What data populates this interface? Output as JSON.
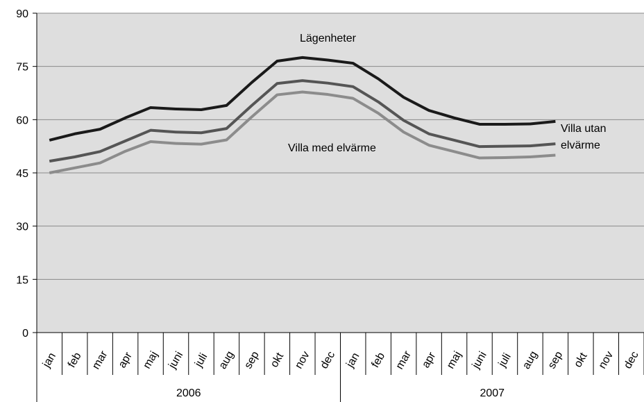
{
  "chart_data": {
    "type": "line",
    "categories": [
      "jan",
      "feb",
      "mar",
      "apr",
      "maj",
      "juni",
      "juli",
      "aug",
      "sep",
      "okt",
      "nov",
      "dec",
      "jan",
      "feb",
      "mar",
      "apr",
      "maj",
      "juni",
      "juli",
      "aug",
      "sep",
      "okt",
      "nov",
      "dec"
    ],
    "x_groups": [
      {
        "label": "2006",
        "size": 12
      },
      {
        "label": "2007",
        "size": 12
      }
    ],
    "series": [
      {
        "name": "Lägenheter",
        "color": "#1a1a1a",
        "values": [
          54.2,
          56,
          57.3,
          60.5,
          63.4,
          63,
          62.8,
          64,
          70.5,
          76.5,
          77.5,
          76.8,
          75.9,
          71.5,
          66.3,
          62.6,
          60.5,
          58.7,
          58.7,
          58.8,
          59.5,
          null,
          null,
          null
        ]
      },
      {
        "name": "Villa utan elvärme",
        "color": "#555555",
        "values": [
          48.3,
          49.5,
          51,
          54,
          57,
          56.5,
          56.3,
          57.5,
          64,
          70.2,
          71,
          70.3,
          69.3,
          65,
          59.8,
          56,
          54.2,
          52.4,
          52.5,
          52.6,
          53.2,
          null,
          null,
          null
        ]
      },
      {
        "name": "Villa med elvärme",
        "color": "#8c8c8c",
        "values": [
          45,
          46.4,
          47.8,
          51.1,
          53.8,
          53.3,
          53.1,
          54.3,
          60.8,
          67,
          67.8,
          67.1,
          66,
          61.8,
          56.5,
          52.8,
          51,
          49.2,
          49.3,
          49.5,
          50,
          null,
          null,
          null
        ]
      }
    ],
    "ylim": [
      0,
      90
    ],
    "yticks": [
      0,
      15,
      30,
      45,
      60,
      75,
      90
    ],
    "grid": true,
    "legend": "inline"
  }
}
